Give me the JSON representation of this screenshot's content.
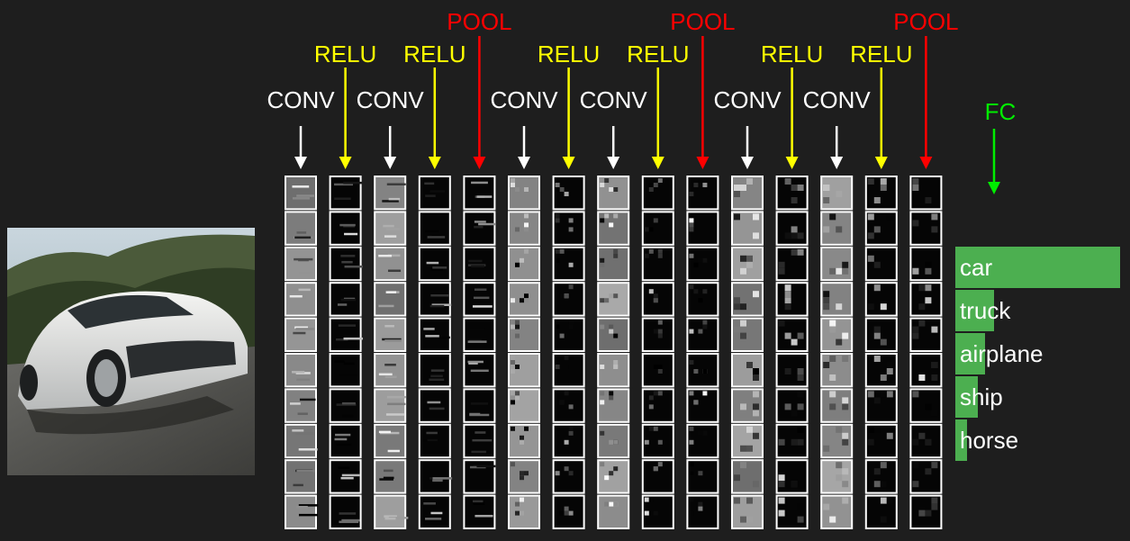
{
  "layers": [
    {
      "label": "CONV",
      "color": "#ffffff"
    },
    {
      "label": "RELU",
      "color": "#ffff00"
    },
    {
      "label": "CONV",
      "color": "#ffffff"
    },
    {
      "label": "RELU",
      "color": "#ffff00"
    },
    {
      "label": "POOL",
      "color": "#ff0000"
    },
    {
      "label": "CONV",
      "color": "#ffffff"
    },
    {
      "label": "RELU",
      "color": "#ffff00"
    },
    {
      "label": "CONV",
      "color": "#ffffff"
    },
    {
      "label": "RELU",
      "color": "#ffff00"
    },
    {
      "label": "POOL",
      "color": "#ff0000"
    },
    {
      "label": "CONV",
      "color": "#ffffff"
    },
    {
      "label": "RELU",
      "color": "#ffff00"
    },
    {
      "label": "CONV",
      "color": "#ffffff"
    },
    {
      "label": "RELU",
      "color": "#ffff00"
    },
    {
      "label": "POOL",
      "color": "#ff0000"
    }
  ],
  "fc": {
    "label": "FC",
    "color": "#00ee00"
  },
  "classes": [
    "car",
    "truck",
    "airplane",
    "ship",
    "horse"
  ]
}
